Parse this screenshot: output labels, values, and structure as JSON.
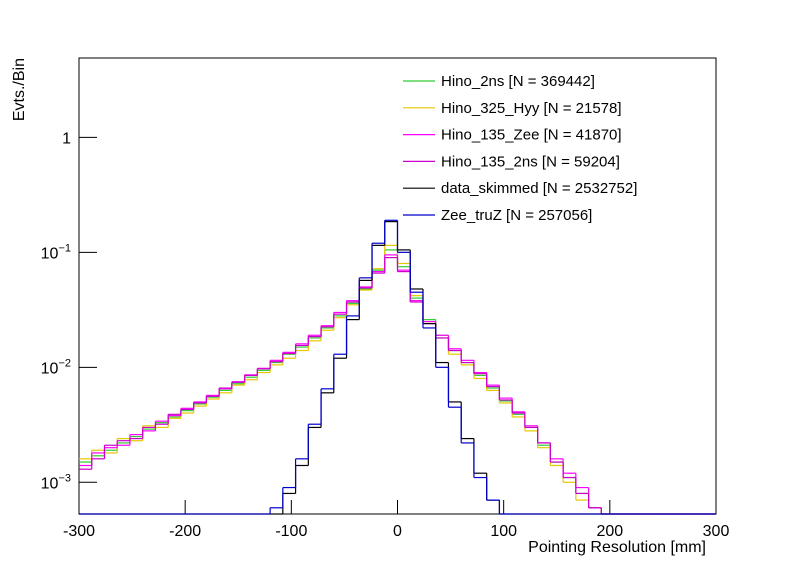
{
  "chart_data": {
    "type": "histogram",
    "y_label": "Evts./Bin",
    "x_label": "Pointing Resolution [mm]",
    "log_y": true,
    "bins": [
      -300,
      -288,
      -276,
      -264,
      -252,
      -240,
      -228,
      -216,
      -204,
      -192,
      -180,
      -168,
      -156,
      -144,
      -132,
      -120,
      -108,
      -96,
      -84,
      -72,
      -60,
      -48,
      -36,
      -24,
      -12,
      0,
      12,
      24,
      36,
      48,
      60,
      72,
      84,
      96,
      108,
      120,
      132,
      144,
      156,
      168,
      180,
      192,
      204,
      216,
      228,
      240,
      252,
      264,
      276,
      288,
      300
    ],
    "xlim": [
      -300,
      300
    ],
    "xticks": [
      -300,
      -200,
      -100,
      0,
      100,
      200,
      300
    ],
    "ylim": [
      0.00053,
      4.9
    ],
    "yticks": [
      {
        "value": 0.001,
        "label": "10",
        "exponent": "−3"
      },
      {
        "value": 0.01,
        "label": "10",
        "exponent": "−2"
      },
      {
        "value": 0.1,
        "label": "10",
        "exponent": "−1"
      },
      1
    ],
    "series": [
      {
        "name": "Hino_2ns [N = 369442]",
        "color": "#33cc33",
        "values": [
          0.0015,
          0.0017,
          0.0019,
          0.0022,
          0.0025,
          0.0029,
          0.0033,
          0.0037,
          0.0042,
          0.0048,
          0.0055,
          0.0063,
          0.0072,
          0.0082,
          0.0094,
          0.011,
          0.013,
          0.015,
          0.018,
          0.022,
          0.028,
          0.036,
          0.048,
          0.07,
          0.105,
          0.075,
          0.04,
          0.026,
          0.019,
          0.014,
          0.011,
          0.0085,
          0.0066,
          0.0051,
          0.0039,
          0.003,
          0.0021,
          0.0015,
          0.0011,
          0.0008,
          0.0006,
          0,
          0,
          0,
          0,
          0,
          0,
          0,
          0,
          0
        ]
      },
      {
        "name": "Hino_325_Hyy [N = 21578]",
        "color": "#e6c800",
        "values": [
          0.0016,
          0.0019,
          0.0018,
          0.0024,
          0.0023,
          0.0031,
          0.003,
          0.0036,
          0.004,
          0.0046,
          0.0053,
          0.006,
          0.007,
          0.0078,
          0.009,
          0.0105,
          0.012,
          0.014,
          0.017,
          0.021,
          0.027,
          0.035,
          0.047,
          0.072,
          0.115,
          0.08,
          0.042,
          0.025,
          0.018,
          0.013,
          0.0105,
          0.008,
          0.0063,
          0.0049,
          0.0037,
          0.0028,
          0.002,
          0.0014,
          0.001,
          0.0007,
          0.0006,
          0,
          0,
          0,
          0,
          0,
          0,
          0,
          0,
          0
        ]
      },
      {
        "name": "Hino_135_Zee [N = 41870]",
        "color": "#ff00ff",
        "values": [
          0.0014,
          0.0018,
          0.002,
          0.0021,
          0.0026,
          0.0028,
          0.0034,
          0.0038,
          0.0044,
          0.005,
          0.0057,
          0.0065,
          0.0075,
          0.0086,
          0.0098,
          0.0115,
          0.0135,
          0.016,
          0.019,
          0.023,
          0.03,
          0.038,
          0.05,
          0.068,
          0.095,
          0.07,
          0.038,
          0.025,
          0.019,
          0.0145,
          0.0115,
          0.009,
          0.007,
          0.0054,
          0.0041,
          0.0031,
          0.0022,
          0.0016,
          0.0012,
          0.0009,
          0.0006,
          0,
          0,
          0,
          0,
          0,
          0,
          0,
          0,
          0
        ]
      },
      {
        "name": "Hino_135_2ns [N = 59204]",
        "color": "#cc00cc",
        "values": [
          0.0013,
          0.0016,
          0.0021,
          0.0023,
          0.0024,
          0.003,
          0.0032,
          0.0039,
          0.0043,
          0.0049,
          0.0056,
          0.0066,
          0.0074,
          0.0085,
          0.0097,
          0.0112,
          0.0132,
          0.0155,
          0.0185,
          0.0225,
          0.029,
          0.037,
          0.049,
          0.066,
          0.09,
          0.068,
          0.037,
          0.024,
          0.018,
          0.014,
          0.011,
          0.0088,
          0.0068,
          0.0052,
          0.004,
          0.003,
          0.0022,
          0.0015,
          0.0011,
          0.0008,
          0.0006,
          0,
          0,
          0,
          0,
          0,
          0,
          0,
          0,
          0
        ]
      },
      {
        "name": "data_skimmed [N = 2532752]",
        "color": "#000000",
        "values": [
          0,
          0,
          0,
          0,
          0,
          0,
          0,
          0,
          0,
          0,
          0,
          0,
          0,
          0,
          0,
          0.0005,
          0.0008,
          0.0014,
          0.003,
          0.006,
          0.012,
          0.026,
          0.057,
          0.115,
          0.185,
          0.105,
          0.048,
          0.024,
          0.011,
          0.005,
          0.0024,
          0.0012,
          0.0007,
          0,
          0,
          0,
          0,
          0,
          0,
          0,
          0,
          0,
          0,
          0,
          0,
          0,
          0,
          0,
          0,
          0
        ]
      },
      {
        "name": "Zee_truZ [N = 257056]",
        "color": "#0000cc",
        "values": [
          0,
          0,
          0,
          0,
          0,
          0,
          0,
          0,
          0,
          0,
          0,
          0,
          0,
          0,
          0,
          0.0006,
          0.0009,
          0.0016,
          0.0032,
          0.0065,
          0.013,
          0.028,
          0.06,
          0.12,
          0.19,
          0.1,
          0.045,
          0.022,
          0.01,
          0.0045,
          0.0022,
          0.0011,
          0.0007,
          0,
          0,
          0,
          0,
          0,
          0,
          0,
          0,
          0,
          0,
          0,
          0,
          0,
          0,
          0,
          0,
          0
        ]
      }
    ]
  }
}
